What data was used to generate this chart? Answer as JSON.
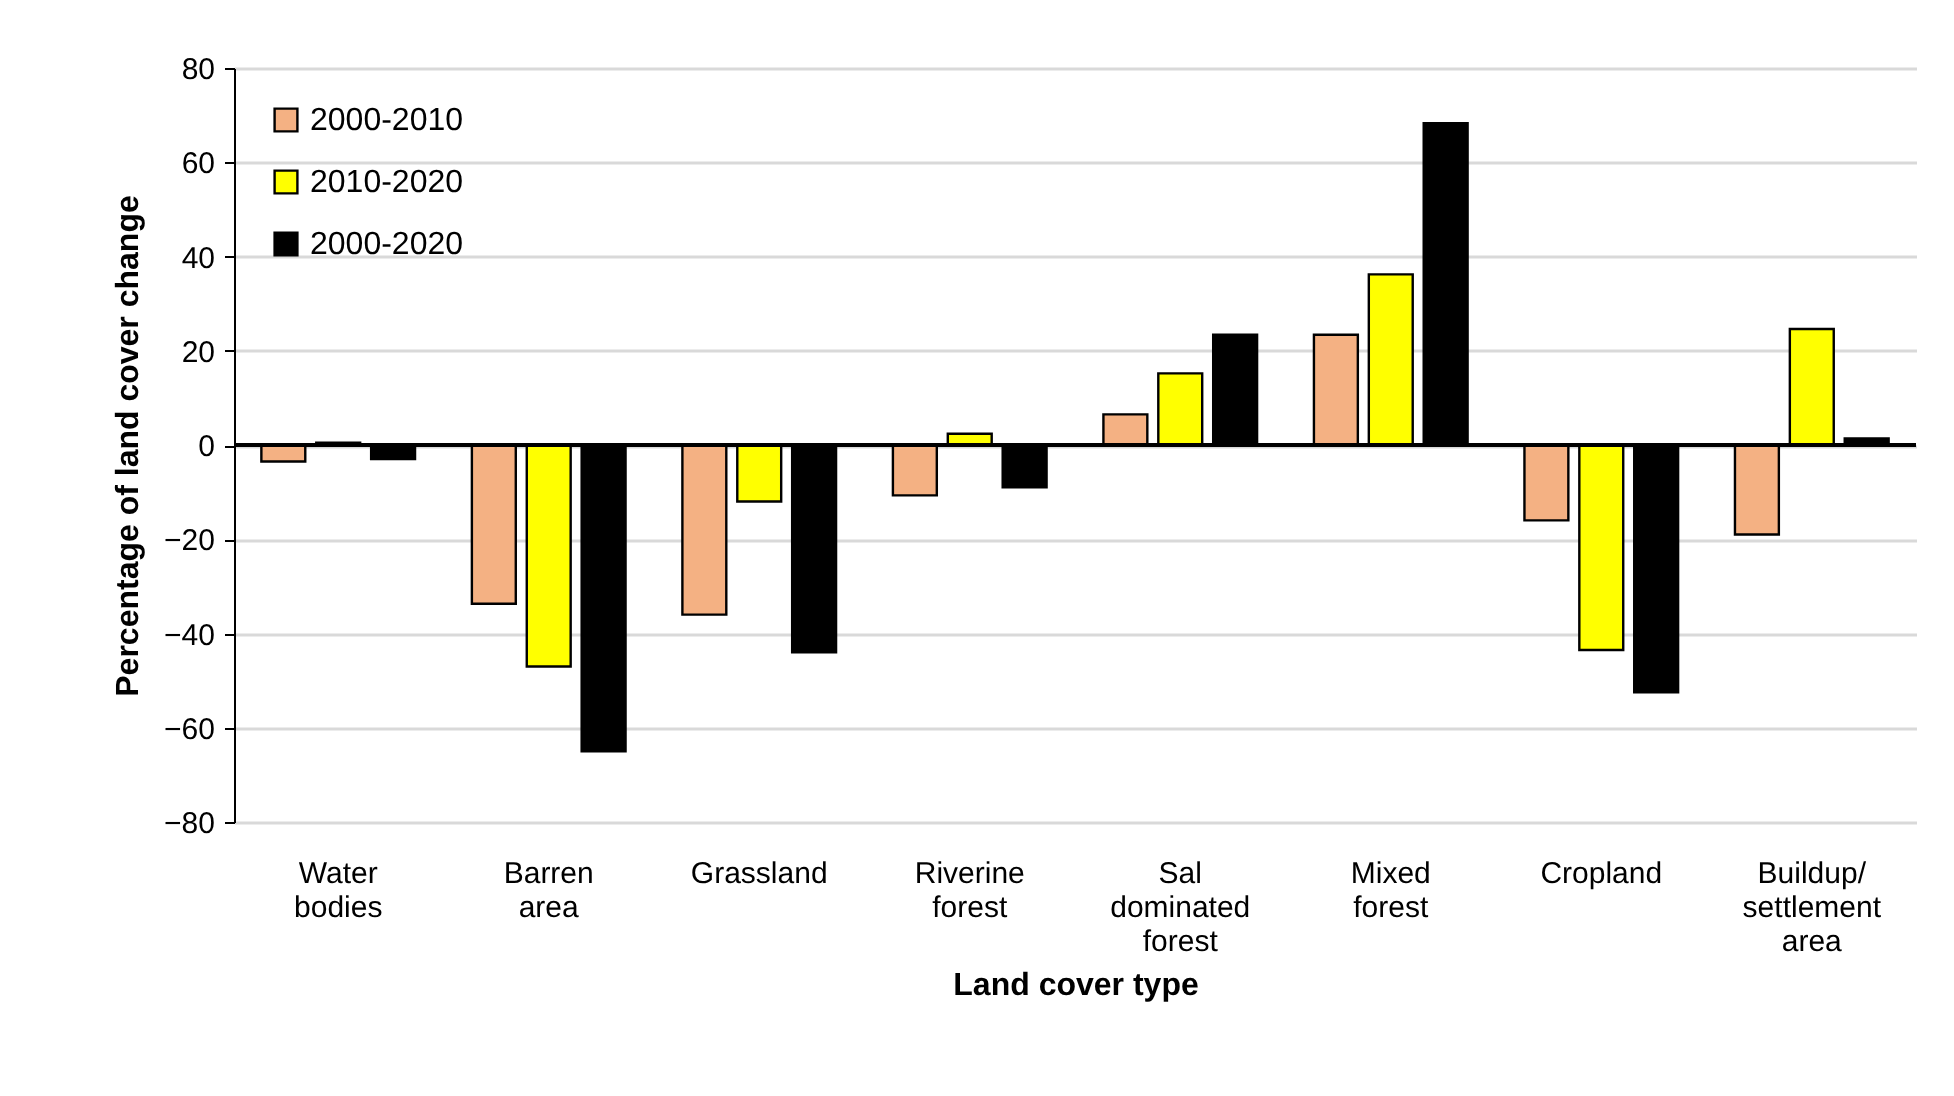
{
  "chart_data": {
    "type": "bar",
    "xlabel": "Land cover type",
    "ylabel": "Percentage of land cover change",
    "categories": [
      "Water bodies",
      "Barren area",
      "Grassland",
      "Riverine forest",
      "Sal dominated forest",
      "Mixed forest",
      "Cropland",
      "Buildup/ settlement area"
    ],
    "series": [
      {
        "name": "2000-2010",
        "color": "#f4b183",
        "values": [
          -3.5,
          -33.7,
          -36,
          -10.7,
          6.5,
          23.4,
          -16,
          -19
        ]
      },
      {
        "name": "2010-2020",
        "color": "#ffff00",
        "values": [
          0.5,
          -47,
          -12,
          2.4,
          15.2,
          36.2,
          -43.5,
          24.6
        ]
      },
      {
        "name": "2000-2020",
        "color": "#000000",
        "values": [
          -3,
          -65,
          -44,
          -9,
          23.4,
          68.3,
          -52.5,
          1.4
        ]
      }
    ],
    "ylim": [
      -80,
      80
    ],
    "yticks": [
      -80,
      -60,
      -40,
      -20,
      0,
      20,
      40,
      60,
      80
    ],
    "grid": "y",
    "legend": "top left"
  }
}
